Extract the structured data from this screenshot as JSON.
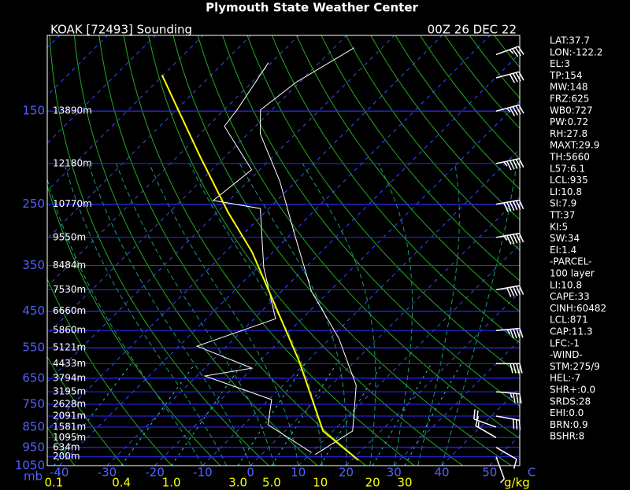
{
  "chart_data": {
    "type": "skewt",
    "title": "Plymouth State Weather Center",
    "station": "KOAK [72493] Sounding",
    "time": "00Z 26 DEC 22",
    "y_unit": "mb",
    "x_unit": "C",
    "mixing_ratio_unit": "g/kg",
    "log_scale": true,
    "ylim": [
      1050,
      99
    ],
    "yticks": [
      150,
      250,
      350,
      450,
      550,
      650,
      750,
      850,
      950,
      1050
    ],
    "xlim": [
      -42.5,
      56.3
    ],
    "xticks": [
      -40,
      -30,
      -20,
      -10,
      0,
      10,
      20,
      30,
      40,
      50
    ],
    "mixing_ratio_ticks": [
      0.1,
      0.4,
      {
        "value": 1,
        "label": "1.0"
      },
      {
        "value": 3,
        "label": "3.0"
      },
      {
        "value": 5,
        "label": "5.0"
      },
      10,
      20,
      30
    ],
    "height_levels": [
      150,
      200,
      250,
      300,
      350,
      400,
      450,
      500,
      550,
      600,
      650,
      700,
      750,
      800,
      850,
      900,
      950,
      1000
    ],
    "height_labels": [
      "13890m",
      "12180m",
      "10770m",
      "9550m",
      "8484m",
      "7530m",
      "6660m",
      "5860m",
      "5121m",
      "4433m",
      "3794m",
      "3195m",
      "2628m",
      "2091m",
      "1581m",
      "1095m",
      "634m",
      "200m"
    ],
    "temperature": {
      "color": "#ffffff",
      "pressure": [
        988,
        868,
        676,
        522,
        403,
        298,
        220,
        170,
        149,
        128,
        106
      ],
      "values": [
        11.2,
        14.1,
        5.3,
        -8.2,
        -23.8,
        -38.7,
        -53.5,
        -67.4,
        -72.4,
        -70.7,
        -65.8
      ]
    },
    "dewpoint": {
      "color": "#ffffff",
      "pressure": [
        976,
        839,
        731,
        642,
        615,
        545,
        469,
        354,
        256,
        245,
        207,
        163,
        149,
        115
      ],
      "values": [
        9.9,
        -4.9,
        -9.4,
        -28.3,
        -20.1,
        -36.2,
        -25.5,
        -38.7,
        -51.8,
        -63.3,
        -61.7,
        -76.5,
        -77.3,
        -80.6
      ]
    },
    "parcel": {
      "color": "#ffff00",
      "pressure": [
        1019,
        868,
        594,
        439,
        325,
        262,
        194,
        149,
        123
      ],
      "values": [
        21.4,
        7.9,
        -11.5,
        -28.0,
        -44.4,
        -57.6,
        -74.8,
        -89.6,
        -100.3
      ]
    },
    "winds": {
      "color": "#ffffff",
      "pressure": [
        1000,
        950,
        900,
        850,
        800,
        700,
        600,
        500,
        400,
        300,
        250,
        200,
        150,
        125,
        110
      ],
      "direction": [
        160,
        120,
        300,
        290,
        100,
        95,
        90,
        85,
        80,
        80,
        80,
        78,
        75,
        75,
        70
      ],
      "speed": [
        5,
        10,
        15,
        20,
        30,
        35,
        40,
        45,
        50,
        55,
        60,
        55,
        45,
        40,
        35
      ]
    },
    "stats": [
      "LAT:37.7",
      "LON:-122.2",
      "EL:3",
      "TP:154",
      "MW:148",
      "FRZ:625",
      "WB0:727",
      "PW:0.72",
      "RH:27.8",
      "MAXT:29.9",
      "TH:5660",
      "L57:6.1",
      "LCL:935",
      "LI:10.8",
      "SI:7.9",
      "TT:37",
      "KI:5",
      "SW:34",
      "EI:1.4",
      "-PARCEL-",
      "100 layer",
      "LI:10.8",
      "CAPE:33",
      "CINH:60482",
      "LCL:871",
      "CAP:11.3",
      "LFC:-1",
      "-WIND-",
      "STM:275/9",
      "HEL:-7",
      "SHR+:0.0",
      "SRDS:28",
      "EHI:0.0",
      "BRN:0.9",
      "BSHR:8"
    ]
  }
}
